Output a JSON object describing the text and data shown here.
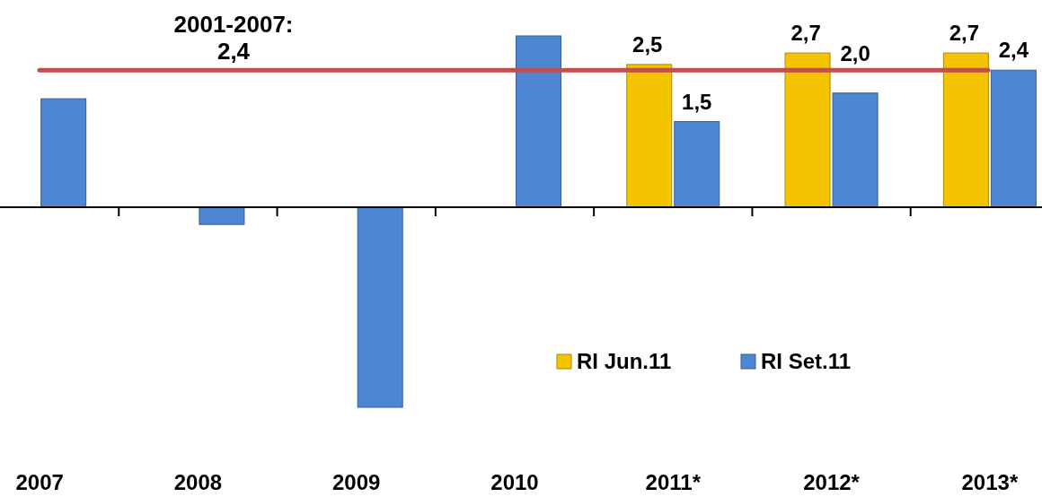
{
  "chart_data": {
    "type": "bar",
    "categories": [
      "2007",
      "2008",
      "2009",
      "2010",
      "2011*",
      "2012*",
      "2013*"
    ],
    "series": [
      {
        "name": "RI Jun.11",
        "color": "#f5c400",
        "values": [
          null,
          null,
          null,
          null,
          2.5,
          2.7,
          2.7
        ],
        "value_labels": [
          null,
          null,
          null,
          null,
          "2,5",
          "2,7",
          "2,7"
        ]
      },
      {
        "name": "RI Set.11",
        "color": "#4f86d4",
        "values": [
          1.9,
          -0.3,
          -3.5,
          3.0,
          1.5,
          2.0,
          2.4
        ],
        "value_labels": [
          null,
          null,
          null,
          null,
          "1,5",
          "2,0",
          "2,4"
        ]
      }
    ],
    "tick_labels": "x",
    "legend": "bottom right",
    "grid": false,
    "ref_lines": [
      {
        "axis": "y",
        "value": 2.4,
        "label": "2001-2007: 2,4",
        "color": "#c0504d"
      }
    ]
  }
}
